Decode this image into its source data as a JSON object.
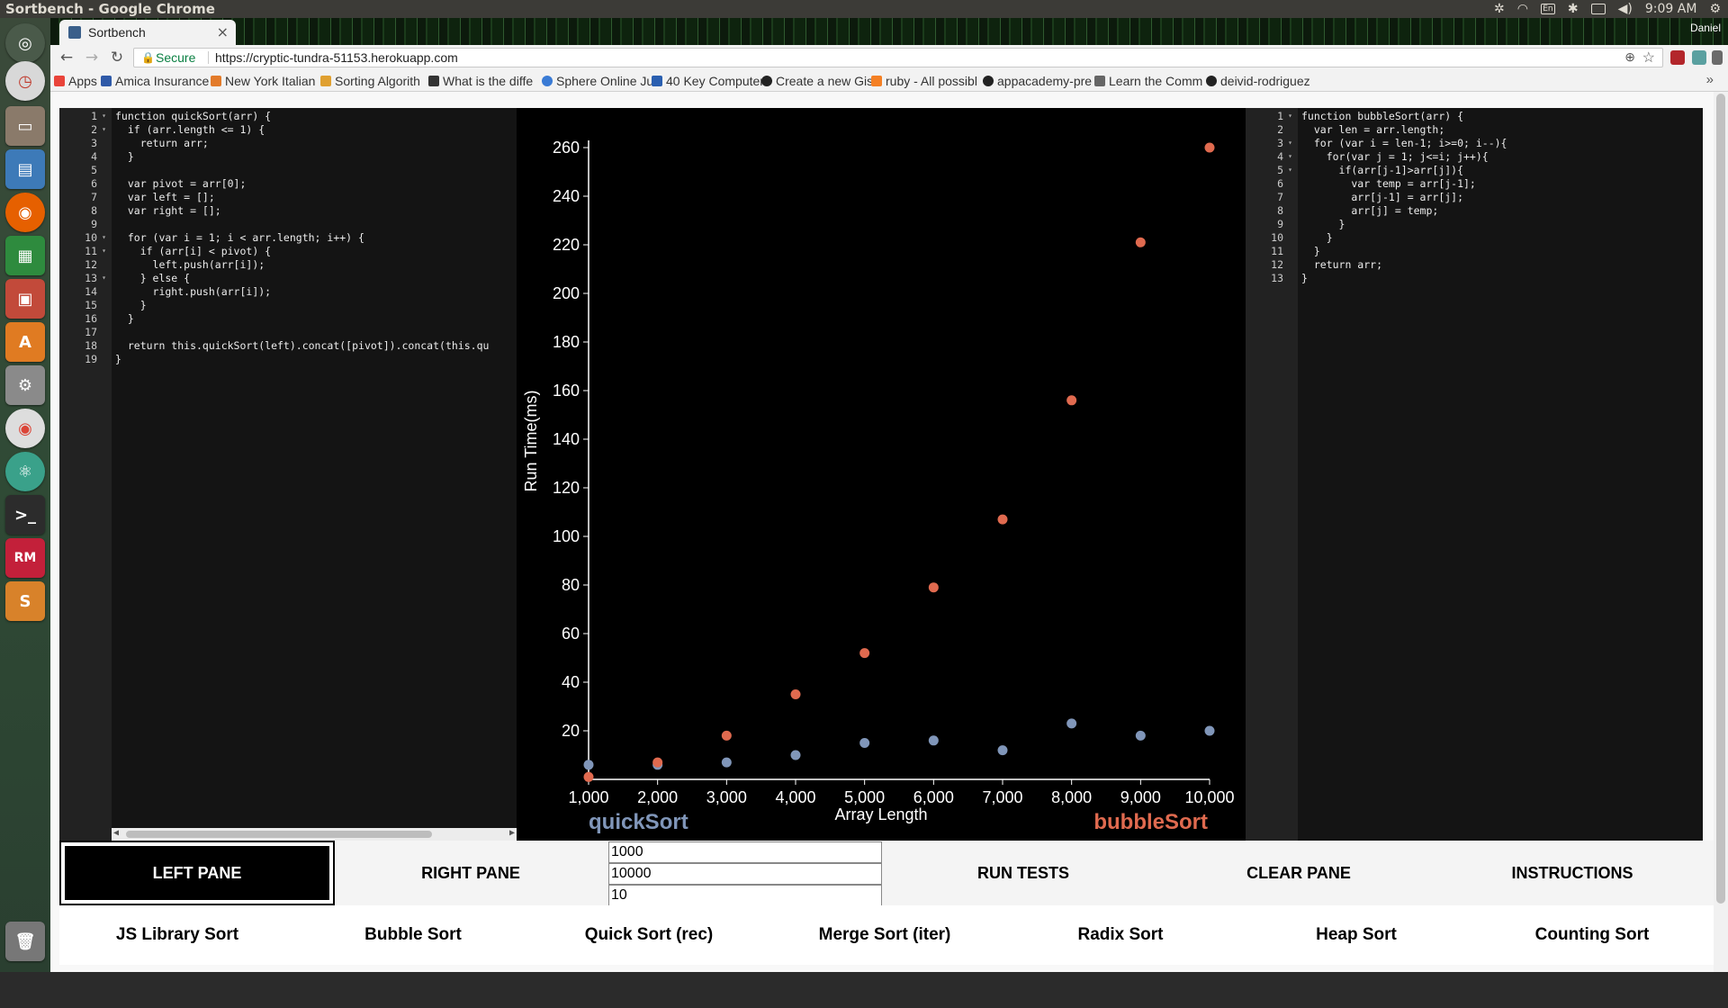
{
  "os": {
    "window_title": "Sortbench - Google Chrome",
    "clock": "9:09 AM",
    "user": "Daniel",
    "keyboard": "En"
  },
  "browser": {
    "tab_title": "Sortbench",
    "tab_close": "×",
    "secure_label": "Secure",
    "url": "https://cryptic-tundra-51153.herokuapp.com",
    "bookmarks": [
      {
        "label": "Apps",
        "color": "#e9443a"
      },
      {
        "label": "Amica Insurance",
        "color": "#2f5aa8"
      },
      {
        "label": "New York Italian",
        "color": "#e37b2a"
      },
      {
        "label": "Sorting Algorith",
        "color": "#e0a030"
      },
      {
        "label": "What is the diffe",
        "color": "#333333"
      },
      {
        "label": "Sphere Online Ju",
        "color": "#3a7bd5"
      },
      {
        "label": "40 Key Computer",
        "color": "#2a5fb0"
      },
      {
        "label": "Create a new Gist",
        "color": "#222222"
      },
      {
        "label": "ruby - All possibl",
        "color": "#f48024"
      },
      {
        "label": "appacademy-pre",
        "color": "#222222"
      },
      {
        "label": "Learn the Comm",
        "color": "#666666"
      },
      {
        "label": "deivid-rodriguez",
        "color": "#222222"
      }
    ],
    "bookmarks_more": "»"
  },
  "left_editor": {
    "line_numbers": [
      "1",
      "2",
      "3",
      "4",
      "5",
      "6",
      "7",
      "8",
      "9",
      "10",
      "11",
      "12",
      "13",
      "14",
      "15",
      "16",
      "17",
      "18",
      "19"
    ],
    "lines": [
      "function quickSort(arr) {",
      "  if (arr.length <= 1) {",
      "    return arr;",
      "  }",
      "",
      "  var pivot = arr[0];",
      "  var left = [];",
      "  var right = [];",
      "",
      "  for (var i = 1; i < arr.length; i++) {",
      "    if (arr[i] < pivot) {",
      "      left.push(arr[i]);",
      "    } else {",
      "      right.push(arr[i]);",
      "    }",
      "  }",
      "",
      "  return this.quickSort(left).concat([pivot]).concat(this.qu",
      "}"
    ]
  },
  "right_editor": {
    "line_numbers": [
      "1",
      "2",
      "3",
      "4",
      "5",
      "6",
      "7",
      "8",
      "9",
      "10",
      "11",
      "12",
      "13"
    ],
    "lines": [
      "function bubbleSort(arr) {",
      "  var len = arr.length;",
      "  for (var i = len-1; i>=0; i--){",
      "    for(var j = 1; j<=i; j++){",
      "      if(arr[j-1]>arr[j]){",
      "        var temp = arr[j-1];",
      "        arr[j-1] = arr[j];",
      "        arr[j] = temp;",
      "      }",
      "    }",
      "  }",
      "  return arr;",
      "}"
    ]
  },
  "chart_data": {
    "type": "scatter",
    "xlabel": "Array Length",
    "ylabel": "Run Time(ms)",
    "xlim": [
      1000,
      10000
    ],
    "ylim": [
      0,
      260
    ],
    "x_ticks": [
      1000,
      2000,
      3000,
      4000,
      5000,
      6000,
      7000,
      8000,
      9000,
      10000
    ],
    "x_tick_labels": [
      "1,000",
      "2,000",
      "3,000",
      "4,000",
      "5,000",
      "6,000",
      "7,000",
      "8,000",
      "9,000",
      "10,000"
    ],
    "y_ticks": [
      20,
      40,
      60,
      80,
      100,
      120,
      140,
      160,
      180,
      200,
      220,
      240,
      260
    ],
    "y_tick_labels": [
      "20",
      "40",
      "60",
      "80",
      "100",
      "120",
      "140",
      "160",
      "180",
      "200",
      "220",
      "240",
      "260"
    ],
    "grid": false,
    "series": [
      {
        "name": "quickSort",
        "color": "#8096b9",
        "x": [
          1000,
          2000,
          3000,
          4000,
          5000,
          6000,
          7000,
          8000,
          9000,
          10000
        ],
        "y": [
          6,
          6,
          7,
          10,
          15,
          16,
          12,
          23,
          18,
          20
        ]
      },
      {
        "name": "bubbleSort",
        "color": "#e06a4f",
        "x": [
          1000,
          2000,
          3000,
          4000,
          5000,
          6000,
          7000,
          8000,
          9000,
          10000
        ],
        "y": [
          1,
          7,
          18,
          35,
          52,
          79,
          107,
          156,
          221,
          260
        ]
      }
    ],
    "legend": {
      "left": "quickSort",
      "right": "bubbleSort"
    }
  },
  "controls": {
    "left_pane": "LEFT PANE",
    "right_pane": "RIGHT PANE",
    "run_tests": "RUN TESTS",
    "clear_pane": "CLEAR PANE",
    "instructions": "INSTRUCTIONS",
    "inputs": {
      "min_length": "1000",
      "max_length": "10000",
      "steps": "10"
    }
  },
  "sorts": [
    "JS Library Sort",
    "Bubble Sort",
    "Quick Sort (rec)",
    "Merge Sort (iter)",
    "Radix Sort",
    "Heap Sort",
    "Counting Sort"
  ]
}
